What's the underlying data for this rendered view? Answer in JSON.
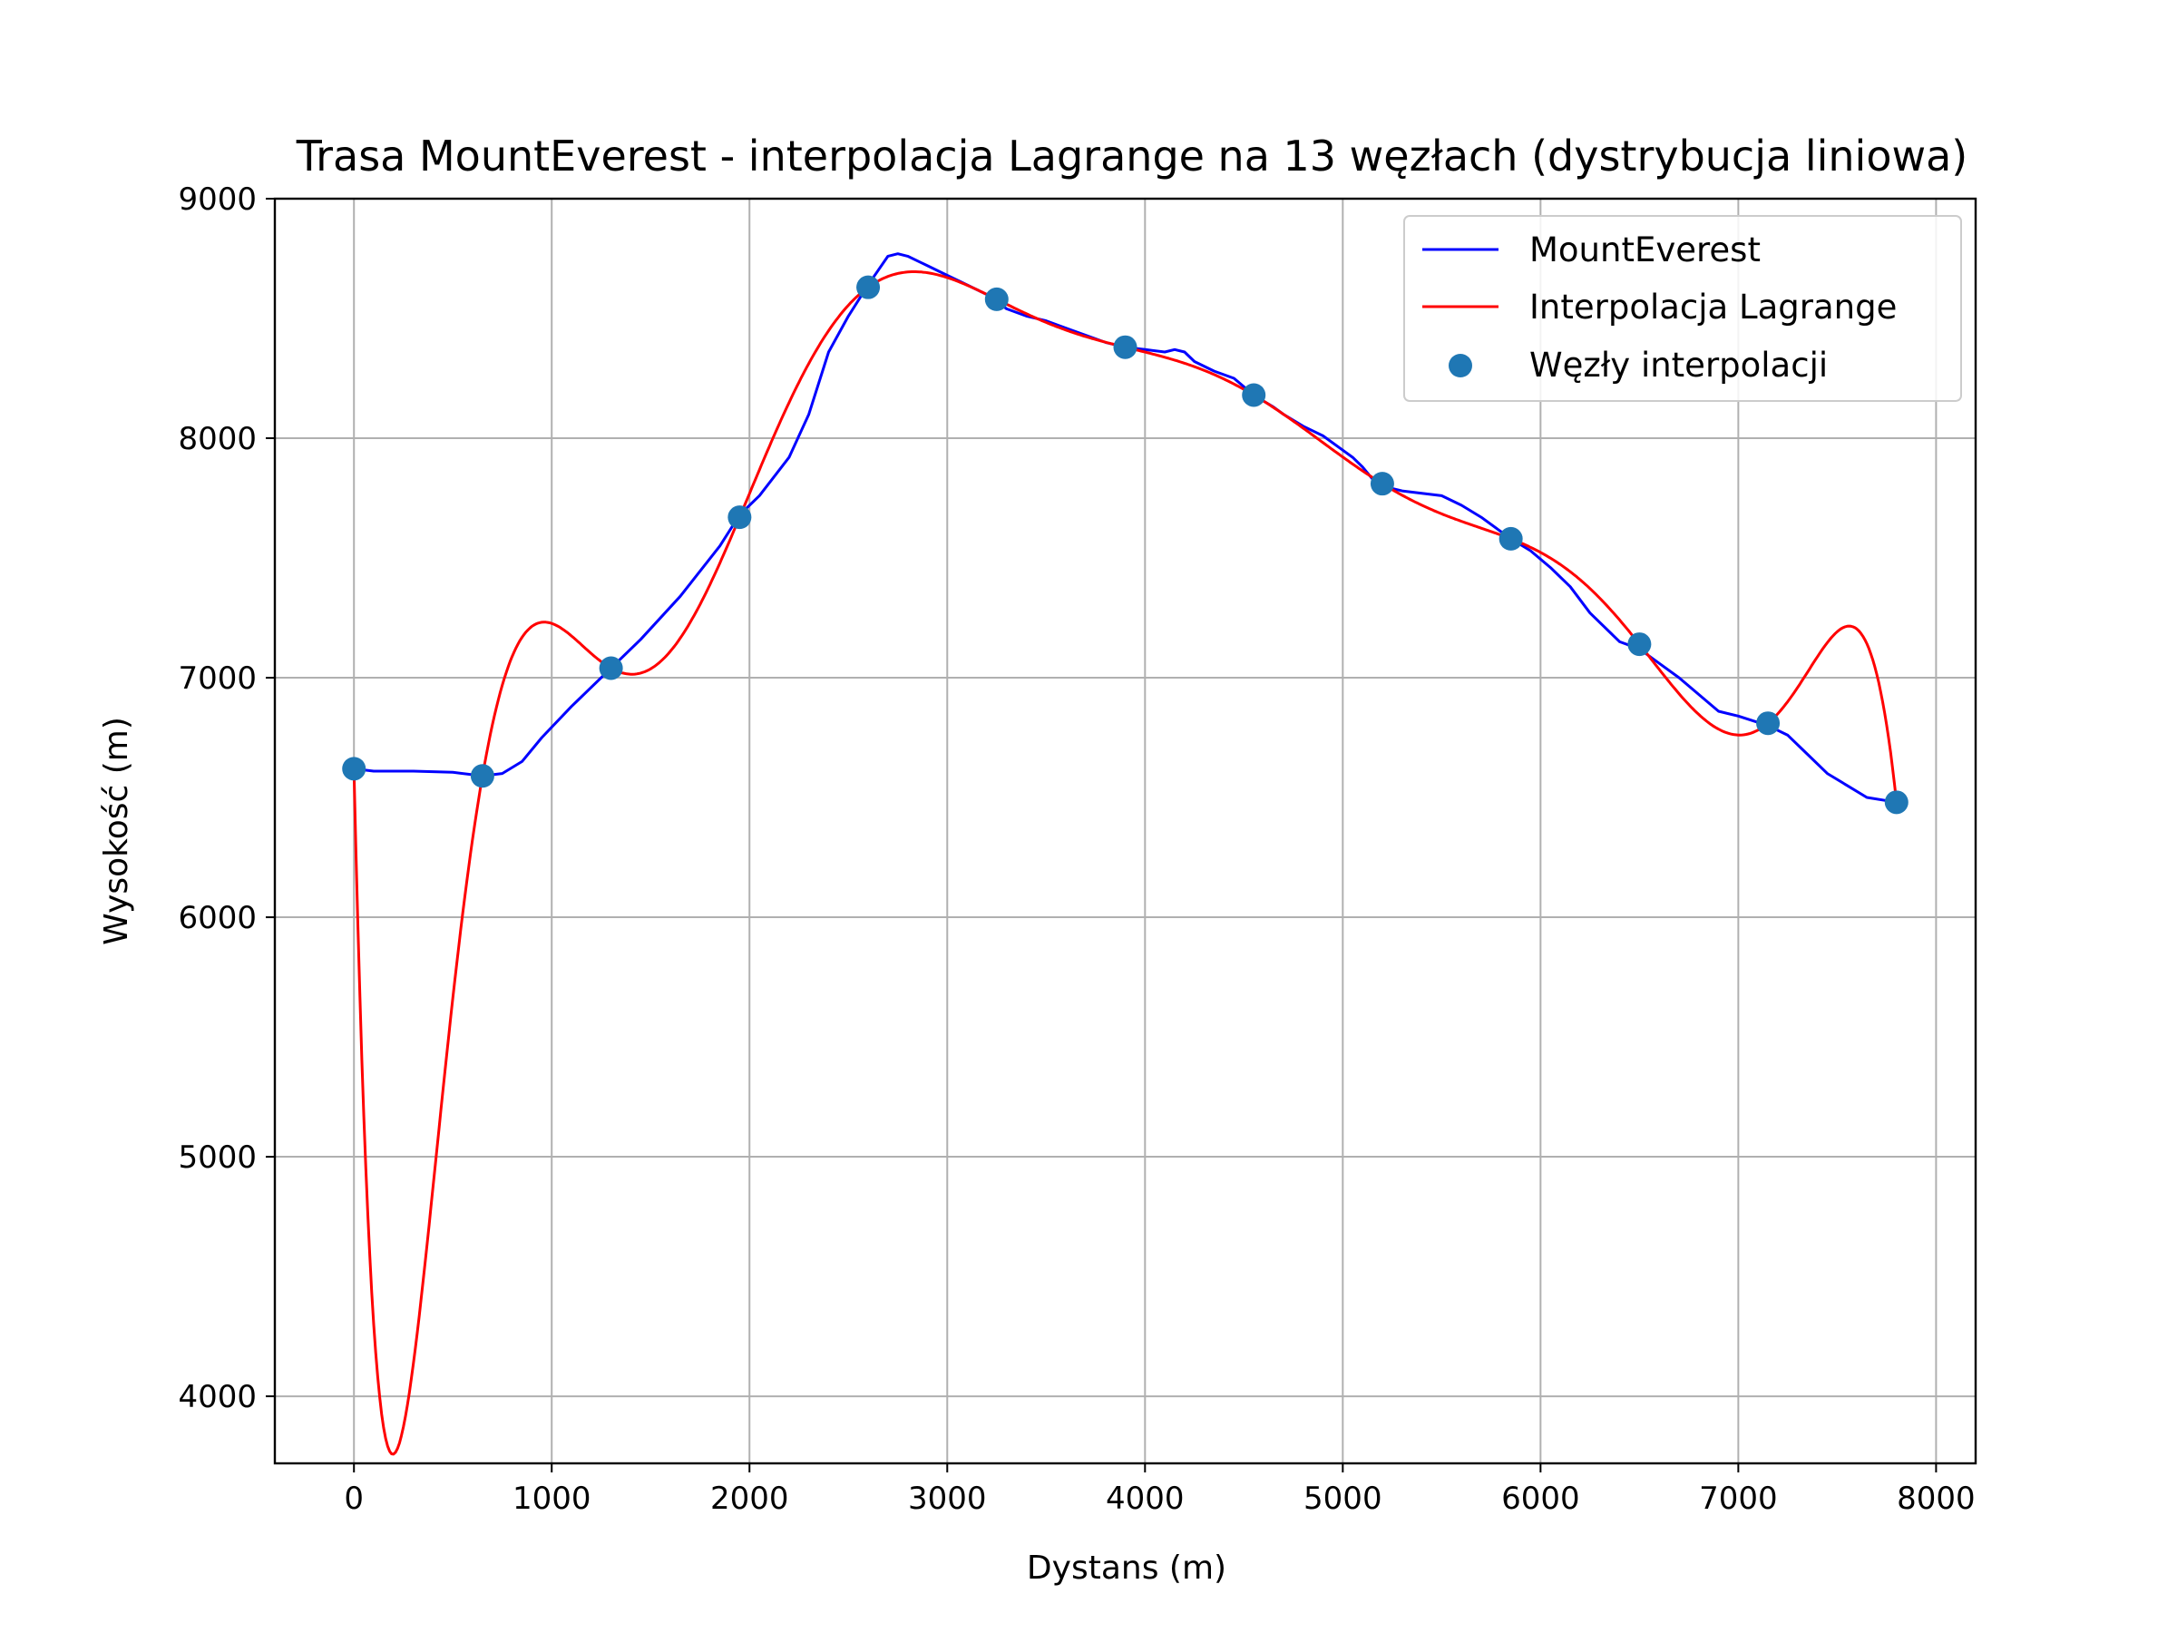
{
  "chart_data": {
    "type": "line",
    "title": "Trasa MountEverest - interpolacja Lagrange na 13 węzłach (dystrybucja liniowa)",
    "xlabel": "Dystans (m)",
    "ylabel": "Wysokość (m)",
    "xlim": [
      -400,
      8200
    ],
    "ylim": [
      3720,
      9000
    ],
    "x_ticks": [
      0,
      1000,
      2000,
      3000,
      4000,
      5000,
      6000,
      7000,
      8000
    ],
    "y_ticks": [
      4000,
      5000,
      6000,
      7000,
      8000,
      9000
    ],
    "grid": true,
    "legend_position": "top-right",
    "series": [
      {
        "name": "MountEverest",
        "kind": "line",
        "color": "#0000ff",
        "x": [
          0,
          100,
          300,
          500,
          650,
          750,
          850,
          950,
          1100,
          1300,
          1450,
          1650,
          1850,
          1950,
          2050,
          2200,
          2300,
          2400,
          2500,
          2600,
          2650,
          2700,
          2750,
          2800,
          2900,
          3000,
          3100,
          3200,
          3240,
          3300,
          3400,
          3500,
          3600,
          3700,
          3800,
          3900,
          4000,
          4100,
          4150,
          4200,
          4250,
          4350,
          4450,
          4550,
          4650,
          4700,
          4800,
          4900,
          5000,
          5050,
          5100,
          5150,
          5200,
          5300,
          5400,
          5500,
          5600,
          5700,
          5800,
          5850,
          5950,
          6050,
          6150,
          6250,
          6400,
          6500,
          6600,
          6700,
          6800,
          6900,
          7000,
          7150,
          7250,
          7350,
          7450,
          7550,
          7650,
          7800
        ],
        "y": [
          6620,
          6610,
          6610,
          6605,
          6590,
          6600,
          6650,
          6750,
          6880,
          7040,
          7160,
          7340,
          7550,
          7680,
          7760,
          7920,
          8100,
          8360,
          8510,
          8640,
          8700,
          8760,
          8770,
          8760,
          8720,
          8680,
          8640,
          8600,
          8580,
          8540,
          8510,
          8490,
          8460,
          8430,
          8400,
          8380,
          8370,
          8360,
          8370,
          8360,
          8320,
          8280,
          8250,
          8180,
          8130,
          8100,
          8050,
          8010,
          7950,
          7920,
          7880,
          7830,
          7800,
          7780,
          7770,
          7760,
          7720,
          7670,
          7610,
          7580,
          7530,
          7460,
          7380,
          7270,
          7150,
          7120,
          7060,
          7000,
          6930,
          6860,
          6840,
          6800,
          6760,
          6680,
          6600,
          6550,
          6500,
          6480
        ]
      },
      {
        "name": "Interpolacja Lagrange",
        "kind": "line",
        "color": "#ff0000",
        "nodes_x": [
          0,
          650,
          1300,
          1950,
          2600,
          3250,
          3900,
          4550,
          5200,
          5850,
          6500,
          7150,
          7800
        ],
        "nodes_y": [
          6620,
          6590,
          7040,
          7670,
          8630,
          8580,
          8380,
          8180,
          7810,
          7580,
          7140,
          6810,
          6480
        ]
      },
      {
        "name": "Węzły interpolacji",
        "kind": "scatter",
        "color": "#1f77b4",
        "x": [
          0,
          650,
          1300,
          1950,
          2600,
          3250,
          3900,
          4550,
          5200,
          5850,
          6500,
          7150,
          7800
        ],
        "y": [
          6620,
          6590,
          7040,
          7670,
          8630,
          8580,
          8380,
          8180,
          7810,
          7580,
          7140,
          6810,
          6480
        ]
      }
    ]
  }
}
